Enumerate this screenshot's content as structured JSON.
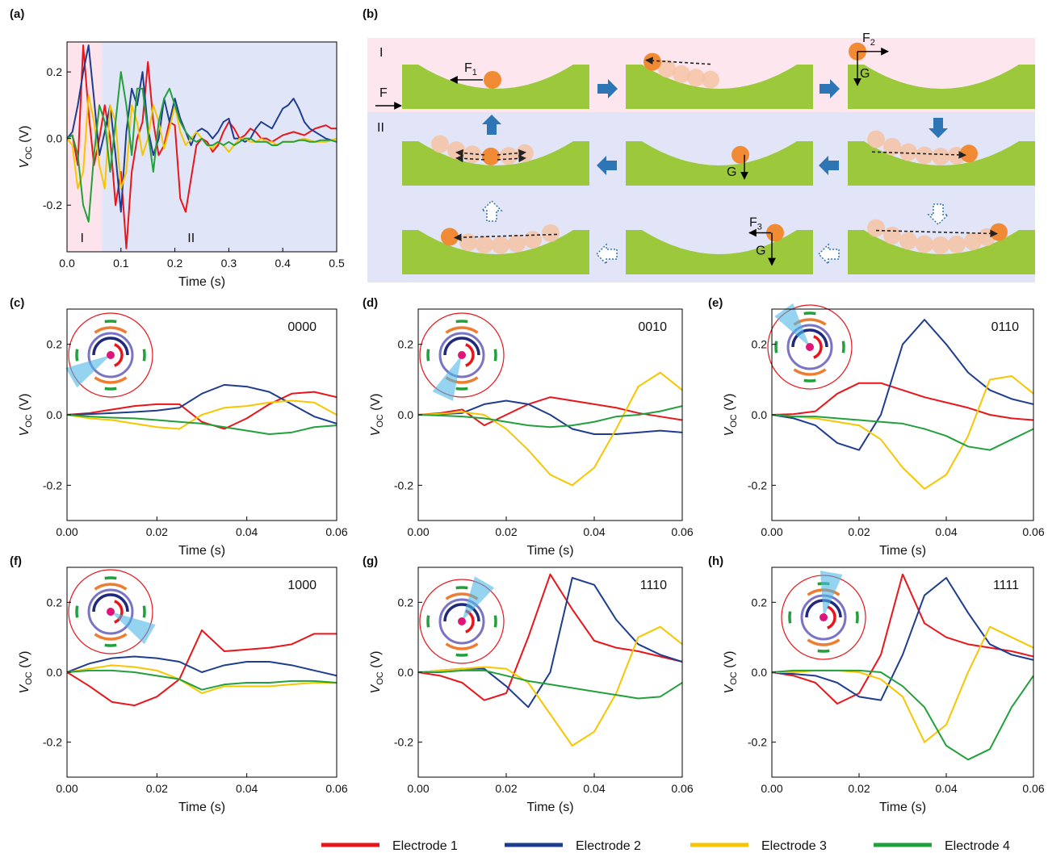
{
  "chart_data": [
    {
      "type": "line",
      "label": "(a)",
      "xlabel": "Time (s)",
      "ylabel": [
        "V",
        "OC",
        " (V)"
      ],
      "x": [
        0,
        0.01,
        0.02,
        0.03,
        0.04,
        0.05,
        0.06,
        0.07,
        0.08,
        0.09,
        0.1,
        0.11,
        0.12,
        0.13,
        0.14,
        0.15,
        0.16,
        0.17,
        0.18,
        0.19,
        0.2,
        0.21,
        0.22,
        0.23,
        0.24,
        0.25,
        0.26,
        0.27,
        0.28,
        0.29,
        0.3,
        0.31,
        0.32,
        0.33,
        0.34,
        0.35,
        0.36,
        0.37,
        0.38,
        0.39,
        0.4,
        0.41,
        0.42,
        0.43,
        0.44,
        0.45,
        0.46,
        0.47,
        0.48,
        0.49,
        0.5
      ],
      "xlim": [
        0,
        0.5
      ],
      "ylim": [
        -0.34,
        0.29
      ],
      "xticks": [
        {
          "value": 0,
          "label": "0.0"
        },
        0.1,
        0.2,
        0.3,
        0.4,
        0.5
      ],
      "yticks": [
        -0.2,
        {
          "value": 0,
          "label": "0.0"
        },
        0.2
      ],
      "regions": [
        {
          "label": "I",
          "x": [
            0,
            0.065
          ],
          "color": "#fde4ec"
        },
        {
          "label": "II",
          "x": [
            0.065,
            0.5
          ],
          "color": "#e1e5f8"
        }
      ],
      "series": [
        {
          "color": "#e8161b",
          "values": [
            0,
            0.01,
            -0.08,
            0.28,
            0.08,
            -0.08,
            0,
            0.1,
            0,
            -0.2,
            -0.1,
            -0.33,
            -0.1,
            0,
            0.05,
            0.23,
            0.05,
            -0.05,
            -0.02,
            0.05,
            0.04,
            -0.18,
            -0.22,
            -0.12,
            -0.02,
            0,
            -0.01,
            -0.04,
            -0.02,
            0.02,
            0.05,
            0.03,
            0,
            0.01,
            0.03,
            0.02,
            0,
            0,
            -0.01,
            0,
            0.01,
            0.015,
            0.02,
            0.015,
            0.01,
            0.02,
            0.03,
            0.035,
            0.04,
            0.03,
            0.03
          ]
        },
        {
          "color": "#1f3d8f",
          "values": [
            0,
            0.02,
            0.1,
            0.2,
            0.28,
            0.12,
            -0.05,
            0.02,
            0.1,
            -0.05,
            -0.22,
            0.02,
            0.15,
            0.1,
            0.2,
            0.03,
            -0.05,
            0,
            0.12,
            0.05,
            0.12,
            0.06,
            0.02,
            -0.02,
            0.02,
            0.03,
            0.02,
            0,
            0.02,
            0.05,
            0.06,
            0,
            0,
            -0.01,
            0,
            0.03,
            0.05,
            0.04,
            0.03,
            0.06,
            0.09,
            0.1,
            0.12,
            0.09,
            0.05,
            0.03,
            0.02,
            0.01,
            0,
            -0.005,
            -0.01
          ]
        },
        {
          "color": "#f7c600",
          "values": [
            0,
            -0.02,
            -0.15,
            -0.1,
            0.13,
            0.05,
            -0.08,
            -0.15,
            0.1,
            0.05,
            -0.15,
            -0.1,
            0.1,
            0.05,
            -0.05,
            0,
            0.1,
            0.05,
            -0.03,
            0.03,
            0.1,
            0.02,
            -0.02,
            0,
            0.02,
            0,
            -0.02,
            -0.03,
            -0.01,
            -0.02,
            -0.04,
            -0.02,
            0,
            0,
            -0.01,
            -0.01,
            0,
            -0.01,
            -0.01,
            -0.02,
            -0.01,
            -0.01,
            -0.01,
            -0.005,
            0,
            -0.005,
            -0.01,
            -0.01,
            -0.01,
            -0.005,
            0
          ]
        },
        {
          "color": "#22a03c",
          "values": [
            0,
            0.01,
            -0.05,
            -0.2,
            -0.25,
            -0.05,
            0.1,
            0.05,
            -0.1,
            0.05,
            0.2,
            0.1,
            -0.05,
            0.15,
            0.15,
            0.02,
            -0.1,
            0.05,
            0.12,
            0.15,
            0.1,
            0.05,
            0.02,
            0,
            -0.01,
            0,
            -0.02,
            -0.02,
            -0.01,
            -0.02,
            -0.01,
            -0.02,
            -0.01,
            0,
            0,
            -0.01,
            -0.01,
            -0.01,
            -0.02,
            -0.02,
            -0.01,
            -0.01,
            -0.01,
            -0.005,
            -0.005,
            -0.01,
            -0.01,
            -0.005,
            -0.005,
            -0.005,
            -0.01
          ]
        }
      ]
    },
    {
      "type": "line",
      "label": "(c)",
      "annotation": "0000",
      "xlabel": "Time (s)",
      "ylabel": [
        "V",
        "OC",
        " (V)"
      ],
      "x": [
        0,
        0.005,
        0.01,
        0.015,
        0.02,
        0.025,
        0.03,
        0.035,
        0.04,
        0.045,
        0.05,
        0.055,
        0.06
      ],
      "xlim": [
        0,
        0.06
      ],
      "ylim": [
        -0.3,
        0.3
      ],
      "xticks": [
        {
          "value": 0,
          "label": "0.00"
        },
        0.02,
        0.04,
        0.06
      ],
      "yticks": [
        -0.2,
        {
          "value": 0,
          "label": "0.0"
        },
        0.2
      ],
      "series": [
        {
          "color": "#e8161b",
          "values": [
            0,
            0.005,
            0.015,
            0.025,
            0.03,
            0.03,
            -0.02,
            -0.04,
            -0.01,
            0.03,
            0.06,
            0.065,
            0.05
          ]
        },
        {
          "color": "#1f3d8f",
          "values": [
            0,
            0.002,
            0.005,
            0.008,
            0.012,
            0.02,
            0.06,
            0.085,
            0.08,
            0.065,
            0.03,
            -0.005,
            -0.025
          ]
        },
        {
          "color": "#f7c600",
          "values": [
            0,
            -0.01,
            -0.015,
            -0.025,
            -0.035,
            -0.04,
            0,
            0.02,
            0.025,
            0.035,
            0.04,
            0.035,
            0
          ]
        },
        {
          "color": "#22a03c",
          "values": [
            0,
            -0.005,
            -0.008,
            -0.01,
            -0.015,
            -0.02,
            -0.025,
            -0.035,
            -0.045,
            -0.055,
            -0.05,
            -0.035,
            -0.03
          ]
        }
      ]
    },
    {
      "type": "line",
      "label": "(d)",
      "annotation": "0010",
      "xlabel": "Time (s)",
      "ylabel": [
        "V",
        "OC",
        " (V)"
      ],
      "x": [
        0,
        0.005,
        0.01,
        0.015,
        0.02,
        0.025,
        0.03,
        0.035,
        0.04,
        0.045,
        0.05,
        0.055,
        0.06
      ],
      "xlim": [
        0,
        0.06
      ],
      "ylim": [
        -0.3,
        0.3
      ],
      "xticks": [
        {
          "value": 0,
          "label": "0.00"
        },
        0.02,
        0.04,
        0.06
      ],
      "yticks": [
        -0.2,
        {
          "value": 0,
          "label": "0.0"
        },
        0.2
      ],
      "series": [
        {
          "color": "#e8161b",
          "values": [
            0,
            0.005,
            0.015,
            -0.03,
            0,
            0.03,
            0.05,
            0.04,
            0.03,
            0.02,
            0.005,
            -0.005,
            -0.015
          ]
        },
        {
          "color": "#1f3d8f",
          "values": [
            0,
            0.002,
            0.005,
            0.03,
            0.04,
            0.03,
            0,
            -0.04,
            -0.055,
            -0.055,
            -0.05,
            -0.045,
            -0.05
          ]
        },
        {
          "color": "#f7c600",
          "values": [
            0,
            0.003,
            0.008,
            0,
            -0.04,
            -0.1,
            -0.17,
            -0.2,
            -0.15,
            -0.04,
            0.08,
            0.12,
            0.07
          ]
        },
        {
          "color": "#22a03c",
          "values": [
            0,
            -0.002,
            -0.005,
            -0.01,
            -0.02,
            -0.03,
            -0.035,
            -0.03,
            -0.02,
            -0.005,
            0,
            0.01,
            0.025
          ]
        }
      ]
    },
    {
      "type": "line",
      "label": "(e)",
      "annotation": "0110",
      "xlabel": "Time (s)",
      "ylabel": [
        "V",
        "OC",
        " (V)"
      ],
      "x": [
        0,
        0.005,
        0.01,
        0.015,
        0.02,
        0.025,
        0.03,
        0.035,
        0.04,
        0.045,
        0.05,
        0.055,
        0.06
      ],
      "xlim": [
        0,
        0.06
      ],
      "ylim": [
        -0.3,
        0.3
      ],
      "xticks": [
        {
          "value": 0,
          "label": "0.00"
        },
        0.02,
        0.04,
        0.06
      ],
      "yticks": [
        -0.2,
        {
          "value": 0,
          "label": "0.0"
        },
        0.2
      ],
      "series": [
        {
          "color": "#e8161b",
          "values": [
            0,
            0.002,
            0.01,
            0.06,
            0.09,
            0.09,
            0.07,
            0.05,
            0.035,
            0.02,
            0,
            -0.01,
            -0.015
          ]
        },
        {
          "color": "#1f3d8f",
          "values": [
            0,
            -0.01,
            -0.03,
            -0.08,
            -0.1,
            0,
            0.2,
            0.27,
            0.2,
            0.12,
            0.07,
            0.045,
            0.03
          ]
        },
        {
          "color": "#f7c600",
          "values": [
            0,
            -0.005,
            -0.01,
            -0.02,
            -0.03,
            -0.07,
            -0.15,
            -0.21,
            -0.17,
            -0.06,
            0.1,
            0.11,
            0.06
          ]
        },
        {
          "color": "#22a03c",
          "values": [
            0,
            -0.005,
            -0.005,
            -0.01,
            -0.015,
            -0.02,
            -0.025,
            -0.04,
            -0.06,
            -0.09,
            -0.1,
            -0.07,
            -0.04
          ]
        }
      ]
    },
    {
      "type": "line",
      "label": "(f)",
      "annotation": "1000",
      "xlabel": "Time (s)",
      "ylabel": [
        "V",
        "OC",
        " (V)"
      ],
      "x": [
        0,
        0.005,
        0.01,
        0.015,
        0.02,
        0.025,
        0.03,
        0.035,
        0.04,
        0.045,
        0.05,
        0.055,
        0.06
      ],
      "xlim": [
        0,
        0.06
      ],
      "ylim": [
        -0.3,
        0.3
      ],
      "xticks": [
        {
          "value": 0,
          "label": "0.00"
        },
        0.02,
        0.04,
        0.06
      ],
      "yticks": [
        -0.2,
        {
          "value": 0,
          "label": "0.0"
        },
        0.2
      ],
      "series": [
        {
          "color": "#e8161b",
          "values": [
            0,
            -0.04,
            -0.085,
            -0.095,
            -0.07,
            -0.02,
            0.12,
            0.06,
            0.065,
            0.07,
            0.08,
            0.11,
            0.11
          ]
        },
        {
          "color": "#1f3d8f",
          "values": [
            0,
            0.025,
            0.04,
            0.045,
            0.04,
            0.03,
            0,
            0.02,
            0.03,
            0.03,
            0.02,
            0.005,
            -0.01
          ]
        },
        {
          "color": "#f7c600",
          "values": [
            0,
            0.01,
            0.02,
            0.015,
            0.005,
            -0.02,
            -0.06,
            -0.04,
            -0.04,
            -0.04,
            -0.035,
            -0.03,
            -0.03
          ]
        },
        {
          "color": "#22a03c",
          "values": [
            0,
            0.005,
            0.005,
            0,
            -0.01,
            -0.02,
            -0.05,
            -0.035,
            -0.03,
            -0.03,
            -0.025,
            -0.025,
            -0.03
          ]
        }
      ]
    },
    {
      "type": "line",
      "label": "(g)",
      "annotation": "1110",
      "xlabel": "Time (s)",
      "ylabel": [
        "V",
        "OC",
        " (V)"
      ],
      "x": [
        0,
        0.005,
        0.01,
        0.015,
        0.02,
        0.025,
        0.03,
        0.035,
        0.04,
        0.045,
        0.05,
        0.055,
        0.06
      ],
      "xlim": [
        0,
        0.06
      ],
      "ylim": [
        -0.3,
        0.3
      ],
      "xticks": [
        {
          "value": 0,
          "label": "0.00"
        },
        0.02,
        0.04,
        0.06
      ],
      "yticks": [
        -0.2,
        {
          "value": 0,
          "label": "0.0"
        },
        0.2
      ],
      "series": [
        {
          "color": "#e8161b",
          "values": [
            0,
            -0.01,
            -0.03,
            -0.08,
            -0.06,
            0.1,
            0.28,
            0.18,
            0.09,
            0.07,
            0.06,
            0.045,
            0.03
          ]
        },
        {
          "color": "#1f3d8f",
          "values": [
            0,
            0.005,
            0.01,
            0.01,
            -0.04,
            -0.1,
            0,
            0.27,
            0.25,
            0.15,
            0.08,
            0.05,
            0.03
          ]
        },
        {
          "color": "#f7c600",
          "values": [
            0,
            0.005,
            0.01,
            0.015,
            0.01,
            -0.03,
            -0.12,
            -0.21,
            -0.17,
            -0.06,
            0.1,
            0.13,
            0.08
          ]
        },
        {
          "color": "#22a03c",
          "values": [
            0,
            0,
            0.005,
            0.005,
            -0.01,
            -0.025,
            -0.035,
            -0.045,
            -0.055,
            -0.065,
            -0.075,
            -0.07,
            -0.03
          ]
        }
      ]
    },
    {
      "type": "line",
      "label": "(h)",
      "annotation": "1111",
      "xlabel": "Time (s)",
      "ylabel": [
        "V",
        "OC",
        " (V)"
      ],
      "x": [
        0,
        0.005,
        0.01,
        0.015,
        0.02,
        0.025,
        0.03,
        0.035,
        0.04,
        0.045,
        0.05,
        0.055,
        0.06
      ],
      "xlim": [
        0,
        0.06
      ],
      "ylim": [
        -0.3,
        0.3
      ],
      "xticks": [
        {
          "value": 0,
          "label": "0.00"
        },
        0.02,
        0.04,
        0.06
      ],
      "yticks": [
        -0.2,
        {
          "value": 0,
          "label": "0.0"
        },
        0.2
      ],
      "series": [
        {
          "color": "#e8161b",
          "values": [
            0,
            -0.01,
            -0.03,
            -0.09,
            -0.06,
            0.05,
            0.28,
            0.14,
            0.1,
            0.08,
            0.07,
            0.06,
            0.045
          ]
        },
        {
          "color": "#1f3d8f",
          "values": [
            0,
            -0.005,
            -0.01,
            -0.03,
            -0.07,
            -0.08,
            0.05,
            0.22,
            0.27,
            0.17,
            0.08,
            0.05,
            0.035
          ]
        },
        {
          "color": "#f7c600",
          "values": [
            0,
            0,
            0.005,
            0.005,
            0,
            -0.02,
            -0.07,
            -0.2,
            -0.15,
            0,
            0.13,
            0.1,
            0.07
          ]
        },
        {
          "color": "#22a03c",
          "values": [
            0,
            0.005,
            0.005,
            0.005,
            0.005,
            0,
            -0.04,
            -0.1,
            -0.21,
            -0.25,
            -0.22,
            -0.1,
            -0.01
          ]
        }
      ]
    }
  ],
  "legend": [
    {
      "name": "Electrode 1",
      "color": "#e8161b"
    },
    {
      "name": "Electrode 2",
      "color": "#1f3d8f"
    },
    {
      "name": "Electrode 3",
      "color": "#f7c600"
    },
    {
      "name": "Electrode 4",
      "color": "#22a03c"
    }
  ],
  "diagram": {
    "label": "(b)",
    "stages": [
      "I",
      "II"
    ],
    "forces": [
      {
        "text": "F"
      },
      {
        "text": "F",
        "sub": "1"
      },
      {
        "text": "F",
        "sub": "2"
      },
      {
        "text": "G"
      },
      {
        "text": "G"
      },
      {
        "text": "F",
        "sub": "3"
      },
      {
        "text": "G"
      }
    ]
  }
}
